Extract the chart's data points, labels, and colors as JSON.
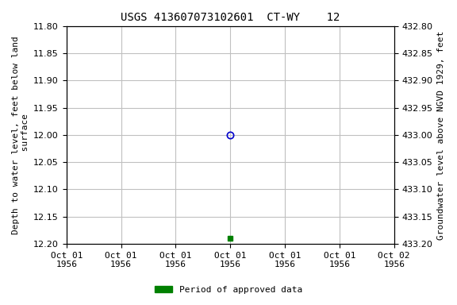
{
  "title": "USGS 413607073102601  CT-WY    12",
  "ylabel_left": "Depth to water level, feet below land\n surface",
  "ylabel_right": "Groundwater level above NGVD 1929, feet",
  "ylim_left": [
    12.2,
    11.8
  ],
  "ylim_right_bottom": 432.8,
  "ylim_right_top": 433.2,
  "yticks_left": [
    11.8,
    11.85,
    11.9,
    11.95,
    12.0,
    12.05,
    12.1,
    12.15,
    12.2
  ],
  "yticks_right": [
    432.8,
    432.85,
    432.9,
    432.95,
    433.0,
    433.05,
    433.1,
    433.15,
    433.2
  ],
  "xlim": [
    0,
    6
  ],
  "xtick_positions": [
    0,
    1,
    2,
    3,
    4,
    5,
    6
  ],
  "xtick_labels": [
    "Oct 01\n1956",
    "Oct 01\n1956",
    "Oct 01\n1956",
    "Oct 01\n1956",
    "Oct 01\n1956",
    "Oct 01\n1956",
    "Oct 02\n1956"
  ],
  "point_x": 3.0,
  "point_y_open": 12.0,
  "point_y_filled": 12.19,
  "open_circle_color": "#0000cc",
  "filled_square_color": "#008000",
  "grid_color": "#c0c0c0",
  "background_color": "#ffffff",
  "legend_label": "Period of approved data",
  "legend_color": "#008000",
  "font_family": "monospace",
  "tick_fontsize": 8,
  "label_fontsize": 8,
  "title_fontsize": 10
}
